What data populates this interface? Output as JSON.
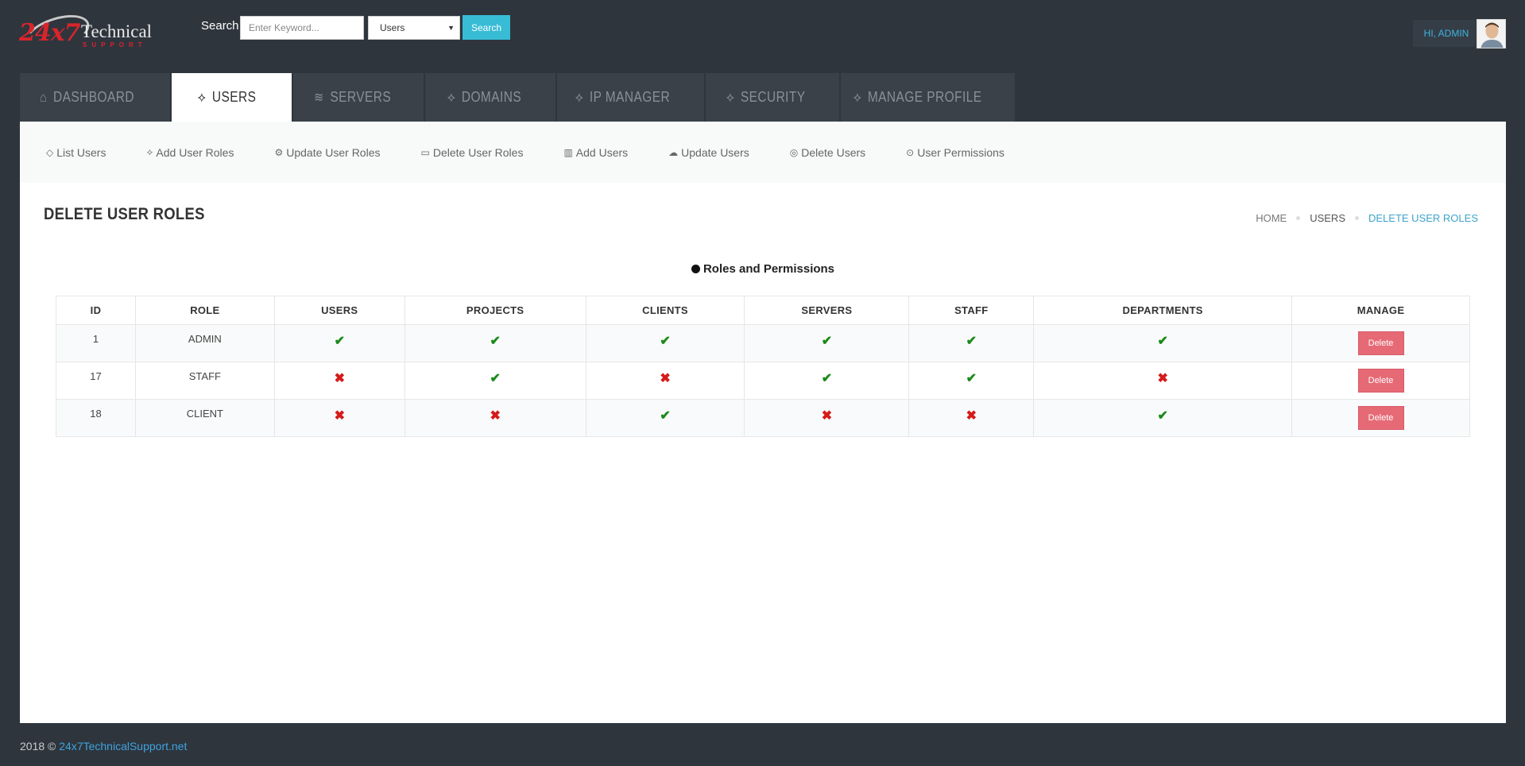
{
  "brand": {
    "num": "24x7",
    "tech": "Technical",
    "support": "SUPPORT"
  },
  "search": {
    "label": "Search",
    "placeholder": "Enter Keyword...",
    "category": "Users",
    "button": "Search"
  },
  "user": {
    "greeting": "HI, ADMIN"
  },
  "tabs": [
    {
      "label": "DASHBOARD",
      "icon": "home-icon",
      "glyph": "⌂"
    },
    {
      "label": "USERS",
      "icon": "tag-icon",
      "glyph": "⟡"
    },
    {
      "label": "SERVERS",
      "icon": "layers-icon",
      "glyph": "≋"
    },
    {
      "label": "DOMAINS",
      "icon": "tag-icon",
      "glyph": "⟡"
    },
    {
      "label": "IP MANAGER",
      "icon": "tag-icon",
      "glyph": "⟡"
    },
    {
      "label": "SECURITY",
      "icon": "tag-icon",
      "glyph": "⟡"
    },
    {
      "label": "MANAGE PROFILE",
      "icon": "tag-icon",
      "glyph": "⟡"
    }
  ],
  "subnav": [
    {
      "label": "List Users",
      "icon": "diamond-icon",
      "glyph": "◇"
    },
    {
      "label": "Add User Roles",
      "icon": "tag-icon",
      "glyph": "⟡"
    },
    {
      "label": "Update User Roles",
      "icon": "gear-icon",
      "glyph": "⚙"
    },
    {
      "label": "Delete User Roles",
      "icon": "folder-icon",
      "glyph": "▭"
    },
    {
      "label": "Add Users",
      "icon": "bar-chart-icon",
      "glyph": "▥"
    },
    {
      "label": "Update Users",
      "icon": "cloud-upload-icon",
      "glyph": "☁"
    },
    {
      "label": "Delete Users",
      "icon": "dribbble-icon",
      "glyph": "◎"
    },
    {
      "label": "User Permissions",
      "icon": "map-pin-icon",
      "glyph": "⊙"
    }
  ],
  "page": {
    "title": "DELETE USER ROLES"
  },
  "breadcrumb": {
    "home": "HOME",
    "users": "USERS",
    "current": "DELETE USER ROLES"
  },
  "table": {
    "title": "Roles and Permissions",
    "headers": [
      "ID",
      "ROLE",
      "USERS",
      "PROJECTS",
      "CLIENTS",
      "SERVERS",
      "STAFF",
      "DEPARTMENTS",
      "MANAGE"
    ],
    "rows": [
      {
        "id": "1",
        "role": "ADMIN",
        "perms": [
          true,
          true,
          true,
          true,
          true,
          true
        ]
      },
      {
        "id": "17",
        "role": "STAFF",
        "perms": [
          false,
          true,
          false,
          true,
          true,
          false
        ]
      },
      {
        "id": "18",
        "role": "CLIENT",
        "perms": [
          false,
          false,
          true,
          false,
          false,
          true
        ]
      }
    ],
    "delete_label": "Delete"
  },
  "footer": {
    "text": "2018 ©",
    "link": "24x7TechnicalSupport.net"
  },
  "colors": {
    "accent": "#38bcd6",
    "ok": "#1a8a1a",
    "no": "#d61a1a",
    "danger": "#e66a76"
  }
}
